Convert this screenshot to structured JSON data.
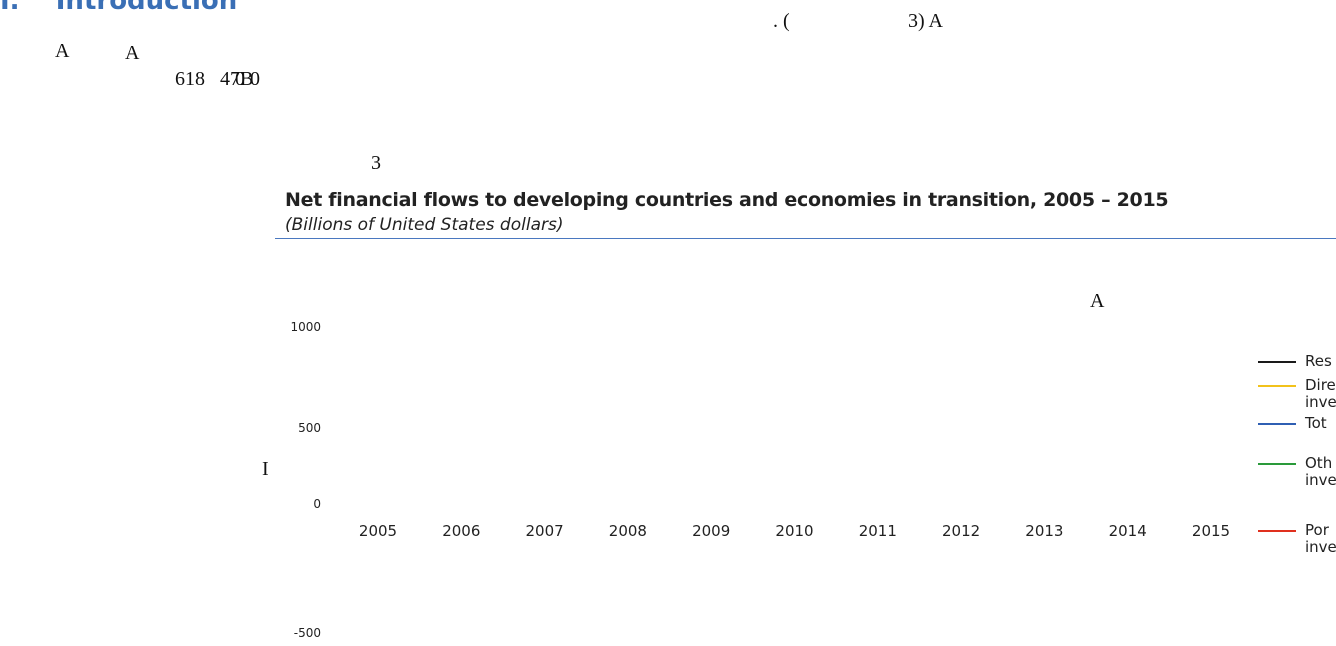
{
  "header": {
    "title": "I.    Introduction"
  },
  "fragments": [
    "A",
    "A",
    "618   47B",
    "0 0",
    ". (",
    "3) A",
    "3",
    "A",
    "I"
  ],
  "chart": {
    "title": "Net financial flows to developing countries and economies in transition, 2005 – 2015",
    "subtitle": "(Billions of United States dollars)",
    "yticks": [
      "1000",
      "500",
      "0",
      "-500"
    ],
    "categories": [
      "2005",
      "2006",
      "2007",
      "2008",
      "2009",
      "2010",
      "2011",
      "2012",
      "2013",
      "2014",
      "2015"
    ],
    "legend": [
      {
        "lines": [
          "Res"
        ],
        "color": "#1a1a1a"
      },
      {
        "lines": [
          "Dire",
          "inve"
        ],
        "color": "#f2c21b"
      },
      {
        "lines": [
          "Tot"
        ],
        "color": "#2f5fb3"
      },
      {
        "lines": [
          "Oth",
          "inve"
        ],
        "color": "#2a9a3a"
      },
      {
        "lines": [
          "Por",
          "inve"
        ],
        "color": "#e0301e"
      }
    ]
  }
}
